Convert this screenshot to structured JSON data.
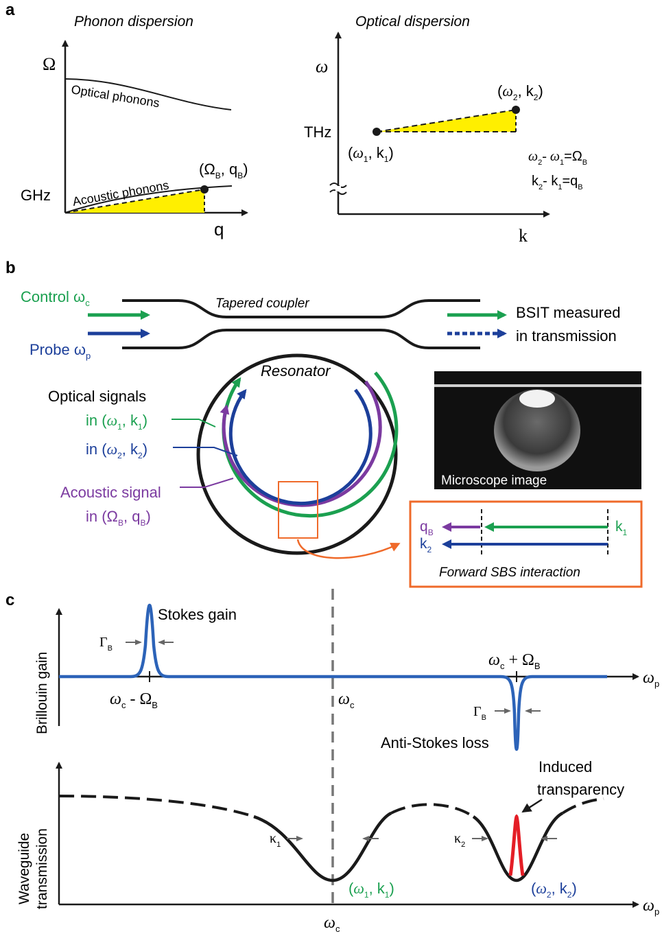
{
  "panel_a": {
    "label": "a",
    "phonon": {
      "title": "Phonon dispersion",
      "y_axis": "Ω",
      "x_axis": "q",
      "y_tick": "GHz",
      "optical_label": "Optical phonons",
      "acoustic_label": "Acoustic phonons",
      "point_open": "(Ω",
      "point_sub1": "B",
      "point_mid": ", q",
      "point_sub2": "B",
      "point_close": ")"
    },
    "optical": {
      "title": "Optical dispersion",
      "y_axis": "ω",
      "x_axis": "k",
      "y_tick": "THz",
      "p1": {
        "w": "ω",
        "ws": "1",
        "k": "k",
        "ks": "1"
      },
      "p2": {
        "w": "ω",
        "ws": "2",
        "k": "k",
        "ks": "2"
      },
      "eq1": {
        "a": "ω",
        "as": "2",
        "b": "- ω",
        "bs": "1",
        "c": "=Ω",
        "cs": "B"
      },
      "eq2": {
        "a": "k",
        "as": "2",
        "b": "- k",
        "bs": "1",
        "c": "=q",
        "cs": "B"
      }
    }
  },
  "panel_b": {
    "label": "b",
    "control": "Control ω",
    "control_sub": "c",
    "probe": "Probe ω",
    "probe_sub": "p",
    "coupler": "Tapered coupler",
    "bsit_line1": "BSIT measured",
    "bsit_line2": "in transmission",
    "resonator": "Resonator",
    "optical_signals": "Optical signals",
    "sig1": {
      "pre": "in (",
      "w": "ω",
      "ws": "1",
      "k": ", k",
      "ks": "1",
      "post": ")"
    },
    "sig2": {
      "pre": "in (",
      "w": "ω",
      "ws": "2",
      "k": ", k",
      "ks": "2",
      "post": ")"
    },
    "acoustic_signal": "Acoustic signal",
    "acoustic_in": {
      "pre": "in (Ω",
      "ws": "B",
      "k": ", q",
      "ks": "B",
      "post": ")"
    },
    "microscope": "Microscope image",
    "sbs_caption": "Forward SBS interaction",
    "qb": "q",
    "qb_sub": "B",
    "k1": "k",
    "k1_sub": "1",
    "k2": "k",
    "k2_sub": "2",
    "colors": {
      "green": "#1ba050",
      "blue": "#1c3f9a",
      "purple": "#7b3aa0",
      "orange": "#ef6a2a"
    }
  },
  "panel_c": {
    "label": "c",
    "gain_axis": "Brillouin gain",
    "trans_axis_line1": "Waveguide",
    "trans_axis_line2": "transmission",
    "stokes": "Stokes gain",
    "anti_stokes": "Anti-Stokes loss",
    "induced_line1": "Induced",
    "induced_line2": "transparency",
    "gamma": "Γ",
    "gamma_sub": "B",
    "minus_label": {
      "a": "ω",
      "as": "c",
      "b": " - Ω",
      "bs": "B"
    },
    "plus_label": {
      "a": "ω",
      "as": "c",
      "b": " + Ω",
      "bs": "B"
    },
    "wc": "ω",
    "wc_sub": "c",
    "wp": "ω",
    "wp_sub": "p",
    "kappa1": "κ",
    "kappa1_sub": "1",
    "kappa2": "κ",
    "kappa2_sub": "2",
    "dip1": {
      "pre": "(",
      "w": "ω",
      "ws": "1",
      "k": ", k",
      "ks": "1",
      "post": ")"
    },
    "dip2": {
      "pre": "(",
      "w": "ω",
      "ws": "2",
      "k": ", k",
      "ks": "2",
      "post": ")"
    },
    "colors": {
      "gain_line": "#2c63b8",
      "transparency": "#e41e26"
    }
  }
}
